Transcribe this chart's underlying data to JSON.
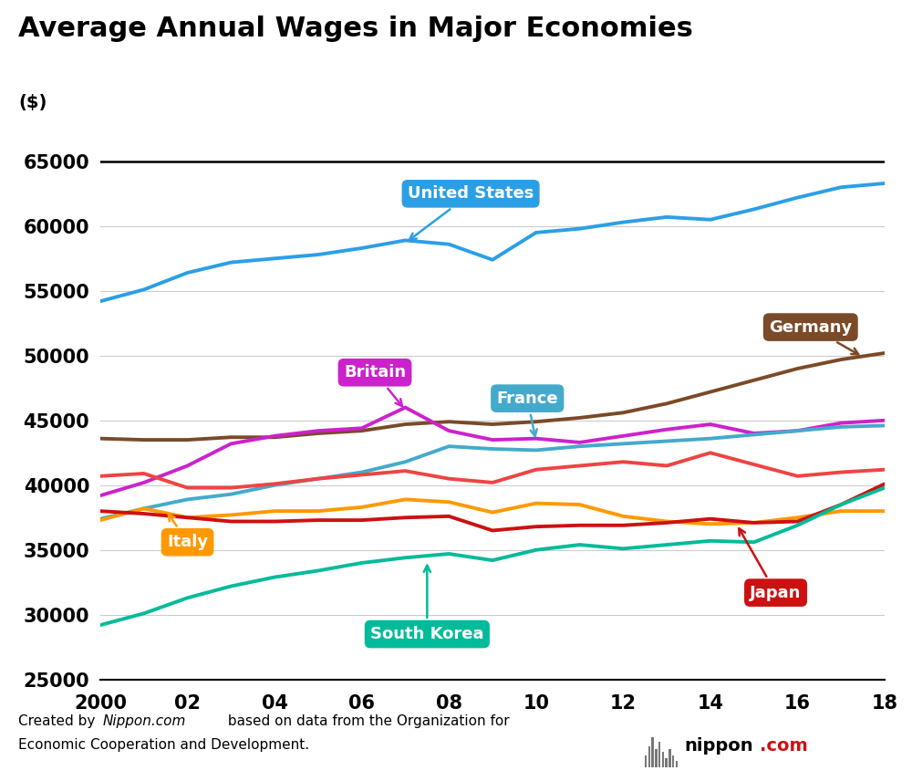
{
  "title": "Average Annual Wages in Major Economies",
  "ylabel": "($)",
  "years": [
    2000,
    2001,
    2002,
    2003,
    2004,
    2005,
    2006,
    2007,
    2008,
    2009,
    2010,
    2011,
    2012,
    2013,
    2014,
    2015,
    2016,
    2017,
    2018
  ],
  "xtick_labels": [
    "2000",
    "02",
    "04",
    "06",
    "08",
    "10",
    "12",
    "14",
    "16",
    "18"
  ],
  "xtick_positions": [
    2000,
    2002,
    2004,
    2006,
    2008,
    2010,
    2012,
    2014,
    2016,
    2018
  ],
  "ylim": [
    25000,
    66000
  ],
  "yticks": [
    25000,
    30000,
    35000,
    40000,
    45000,
    50000,
    55000,
    60000,
    65000
  ],
  "series": {
    "United States": {
      "color": "#2B9FE6",
      "linewidth": 2.8,
      "values": [
        54200,
        55100,
        56400,
        57200,
        57500,
        57800,
        58300,
        58900,
        58600,
        57400,
        59500,
        59800,
        60300,
        60700,
        60500,
        61300,
        62200,
        63000,
        63300
      ]
    },
    "Germany": {
      "color": "#7B4A28",
      "linewidth": 2.8,
      "values": [
        43600,
        43500,
        43500,
        43700,
        43700,
        44000,
        44200,
        44700,
        44900,
        44700,
        44900,
        45200,
        45600,
        46300,
        47200,
        48100,
        49000,
        49700,
        50200
      ]
    },
    "Britain": {
      "color": "#CC22CC",
      "linewidth": 2.8,
      "values": [
        39200,
        40200,
        41500,
        43200,
        43800,
        44200,
        44400,
        46000,
        44200,
        43500,
        43600,
        43300,
        43800,
        44300,
        44700,
        44000,
        44200,
        44800,
        45000
      ]
    },
    "France": {
      "color": "#44AACC",
      "linewidth": 2.8,
      "values": [
        37400,
        38200,
        38900,
        39300,
        40000,
        40500,
        41000,
        41800,
        43000,
        42800,
        42700,
        43000,
        43200,
        43400,
        43600,
        43900,
        44200,
        44500,
        44600
      ]
    },
    "Canada": {
      "color": "#EE4444",
      "linewidth": 2.8,
      "values": [
        40700,
        40900,
        39800,
        39800,
        40100,
        40500,
        40800,
        41100,
        40500,
        40200,
        41200,
        41500,
        41800,
        41500,
        42500,
        41600,
        40700,
        41000,
        41200
      ]
    },
    "Italy": {
      "color": "#FF9900",
      "linewidth": 2.8,
      "values": [
        37300,
        38200,
        37500,
        37700,
        38000,
        38000,
        38300,
        38900,
        38700,
        37900,
        38600,
        38500,
        37600,
        37200,
        37000,
        37100,
        37500,
        38000,
        38000
      ]
    },
    "Japan": {
      "color": "#CC1111",
      "linewidth": 2.8,
      "values": [
        38000,
        37800,
        37500,
        37200,
        37200,
        37300,
        37300,
        37500,
        37600,
        36500,
        36800,
        36900,
        36900,
        37100,
        37400,
        37100,
        37200,
        38500,
        40100
      ]
    },
    "South Korea": {
      "color": "#00BB99",
      "linewidth": 2.8,
      "values": [
        29200,
        30100,
        31300,
        32200,
        32900,
        33400,
        34000,
        34400,
        34700,
        34200,
        35000,
        35400,
        35100,
        35400,
        35700,
        35600,
        36900,
        38500,
        39800
      ]
    }
  },
  "background_color": "#FFFFFF"
}
